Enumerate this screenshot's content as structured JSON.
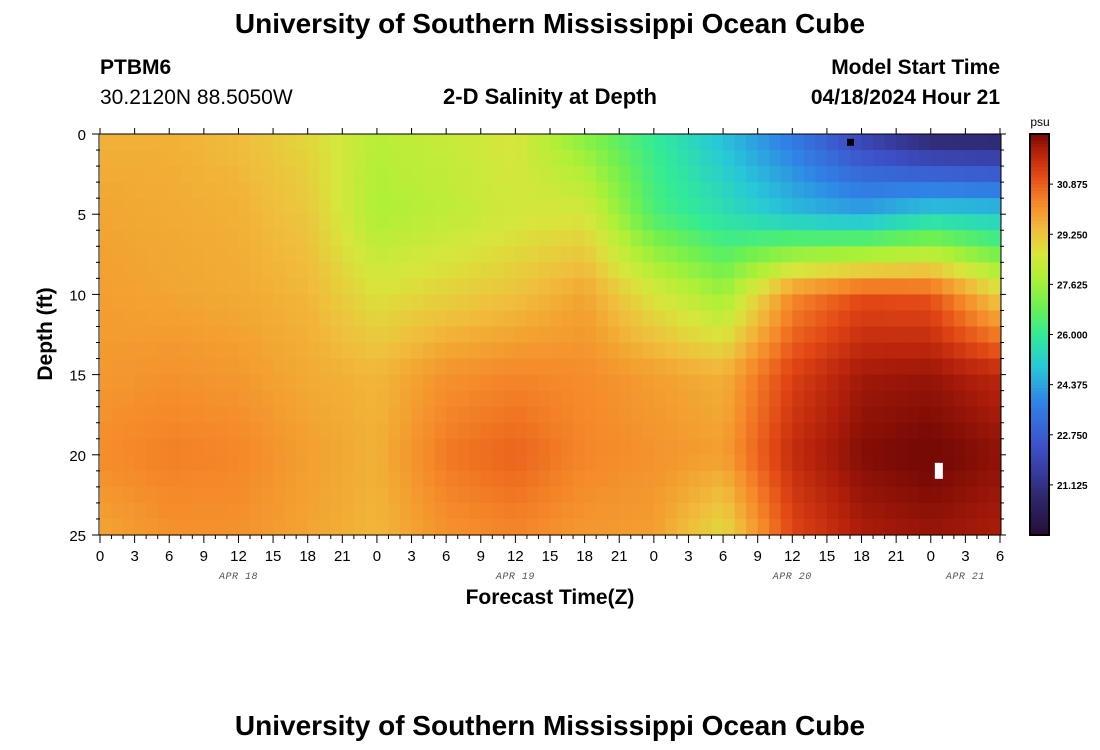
{
  "header": {
    "title": "University of Southern Mississippi Ocean Cube",
    "station": "PTBM6",
    "coords": "30.2120N  88.5050W",
    "plot_title": "2-D Salinity at Depth",
    "model_label": "Model Start Time",
    "model_time": "04/18/2024 Hour 21"
  },
  "footer": {
    "title": "University of Southern Mississippi Ocean Cube"
  },
  "chart_data": {
    "type": "heatmap",
    "title": "2-D Salinity at Depth",
    "xlabel": "Forecast Time(Z)",
    "ylabel": "Depth (ft)",
    "x_range_hours": [
      0,
      78
    ],
    "x_ticks": [
      "0",
      "3",
      "6",
      "9",
      "12",
      "15",
      "18",
      "21",
      "0",
      "3",
      "6",
      "9",
      "12",
      "15",
      "18",
      "21",
      "0",
      "3",
      "6",
      "9",
      "12",
      "15",
      "18",
      "21",
      "0",
      "3",
      "6"
    ],
    "date_labels": [
      {
        "label": "APR 18",
        "hour": 12
      },
      {
        "label": "APR 19",
        "hour": 36
      },
      {
        "label": "APR 20",
        "hour": 60
      },
      {
        "label": "APR 21",
        "hour": 75
      }
    ],
    "ylim": [
      0,
      25
    ],
    "y_ticks": [
      "0",
      "5",
      "10",
      "15",
      "20",
      "25"
    ],
    "colorbar": {
      "unit": "psu",
      "range": [
        19.5,
        32.5
      ],
      "ticks": [
        "30.875",
        "29.250",
        "27.625",
        "26.000",
        "24.375",
        "22.750",
        "21.125"
      ]
    },
    "salinity_grid": {
      "hours": [
        0,
        6,
        12,
        18,
        24,
        30,
        36,
        42,
        48,
        54,
        60,
        66,
        72,
        78
      ],
      "depths_ft": [
        0,
        5,
        10,
        15,
        20,
        25
      ],
      "values_psu": [
        [
          29.6,
          29.6,
          29.4,
          28.9,
          28.0,
          28.3,
          28.6,
          27.2,
          26.0,
          24.8,
          23.5,
          21.8,
          20.5,
          20.4
        ],
        [
          29.8,
          29.7,
          29.6,
          29.2,
          27.8,
          28.1,
          28.5,
          28.6,
          26.4,
          25.6,
          24.8,
          24.4,
          25.2,
          25.0
        ],
        [
          29.9,
          29.8,
          29.7,
          29.5,
          28.7,
          29.0,
          29.3,
          29.8,
          28.6,
          27.6,
          30.2,
          31.1,
          31.0,
          29.0
        ],
        [
          30.0,
          30.1,
          30.0,
          29.7,
          29.5,
          30.1,
          30.3,
          30.2,
          29.9,
          29.6,
          31.3,
          32.1,
          32.2,
          31.8
        ],
        [
          30.2,
          30.4,
          30.3,
          29.9,
          29.6,
          30.5,
          30.8,
          30.3,
          30.1,
          29.9,
          31.7,
          32.4,
          32.6,
          32.3
        ],
        [
          29.8,
          30.1,
          30.1,
          29.8,
          29.5,
          30.1,
          30.3,
          30.0,
          29.9,
          28.8,
          31.2,
          32.0,
          32.2,
          32.0
        ]
      ]
    },
    "markers": [
      {
        "kind": "black",
        "hour": 65,
        "depth_ft": 0.3
      },
      {
        "kind": "white",
        "hour": 72.7,
        "depth_ft": 21
      }
    ]
  }
}
